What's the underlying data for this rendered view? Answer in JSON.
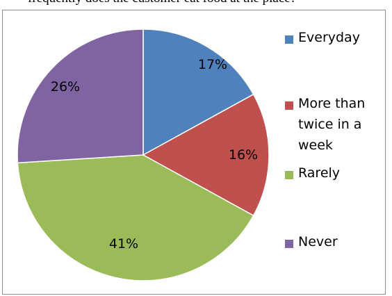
{
  "page": {
    "top_fragment": "frequently does the customer eat food at the place?"
  },
  "chart_data": {
    "type": "pie",
    "title": "",
    "categories": [
      "Everyday",
      "More than twice in a week",
      "Rarely",
      "Never"
    ],
    "values": [
      17,
      16,
      41,
      26
    ],
    "labels": [
      "17%",
      "16%",
      "41%",
      "26%"
    ],
    "colors": [
      "#4f81bd",
      "#c0504d",
      "#9bbb59",
      "#8064a2"
    ],
    "legend_position": "right",
    "start_angle": "12 o'clock, clockwise"
  }
}
